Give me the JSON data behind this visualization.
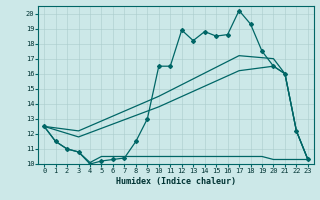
{
  "xlabel": "Humidex (Indice chaleur)",
  "background_color": "#cce8e8",
  "line_color": "#006666",
  "xlim": [
    -0.5,
    23.5
  ],
  "ylim": [
    10,
    20.5
  ],
  "xticks": [
    0,
    1,
    2,
    3,
    4,
    5,
    6,
    7,
    8,
    9,
    10,
    11,
    12,
    13,
    14,
    15,
    16,
    17,
    18,
    19,
    20,
    21,
    22,
    23
  ],
  "yticks": [
    10,
    11,
    12,
    13,
    14,
    15,
    16,
    17,
    18,
    19,
    20
  ],
  "main_line": [
    [
      0,
      12.5
    ],
    [
      1,
      11.5
    ],
    [
      2,
      11.0
    ],
    [
      3,
      10.8
    ],
    [
      4,
      10.0
    ],
    [
      5,
      10.2
    ],
    [
      6,
      10.3
    ],
    [
      7,
      10.4
    ],
    [
      8,
      11.5
    ],
    [
      9,
      13.0
    ],
    [
      10,
      16.5
    ],
    [
      11,
      16.5
    ],
    [
      12,
      18.9
    ],
    [
      13,
      18.2
    ],
    [
      14,
      18.8
    ],
    [
      15,
      18.5
    ],
    [
      16,
      18.6
    ],
    [
      17,
      20.2
    ],
    [
      18,
      19.3
    ],
    [
      19,
      17.5
    ],
    [
      20,
      16.5
    ],
    [
      21,
      16.0
    ],
    [
      22,
      12.2
    ],
    [
      23,
      10.3
    ]
  ],
  "line_flat": [
    [
      0,
      12.5
    ],
    [
      1,
      11.5
    ],
    [
      2,
      11.0
    ],
    [
      3,
      10.8
    ],
    [
      4,
      10.1
    ],
    [
      5,
      10.5
    ],
    [
      6,
      10.5
    ],
    [
      7,
      10.5
    ],
    [
      8,
      10.5
    ],
    [
      9,
      10.5
    ],
    [
      10,
      10.5
    ],
    [
      11,
      10.5
    ],
    [
      12,
      10.5
    ],
    [
      13,
      10.5
    ],
    [
      14,
      10.5
    ],
    [
      15,
      10.5
    ],
    [
      16,
      10.5
    ],
    [
      17,
      10.5
    ],
    [
      18,
      10.5
    ],
    [
      19,
      10.5
    ],
    [
      20,
      10.3
    ],
    [
      21,
      10.3
    ],
    [
      22,
      10.3
    ],
    [
      23,
      10.3
    ]
  ],
  "line_mid1": [
    [
      0,
      12.5
    ],
    [
      3,
      11.8
    ],
    [
      10,
      13.8
    ],
    [
      17,
      16.2
    ],
    [
      20,
      16.5
    ],
    [
      21,
      16.0
    ],
    [
      22,
      12.2
    ],
    [
      23,
      10.3
    ]
  ],
  "line_mid2": [
    [
      0,
      12.5
    ],
    [
      3,
      12.2
    ],
    [
      10,
      14.5
    ],
    [
      17,
      17.2
    ],
    [
      20,
      17.0
    ],
    [
      21,
      16.0
    ],
    [
      22,
      12.2
    ],
    [
      23,
      10.3
    ]
  ]
}
